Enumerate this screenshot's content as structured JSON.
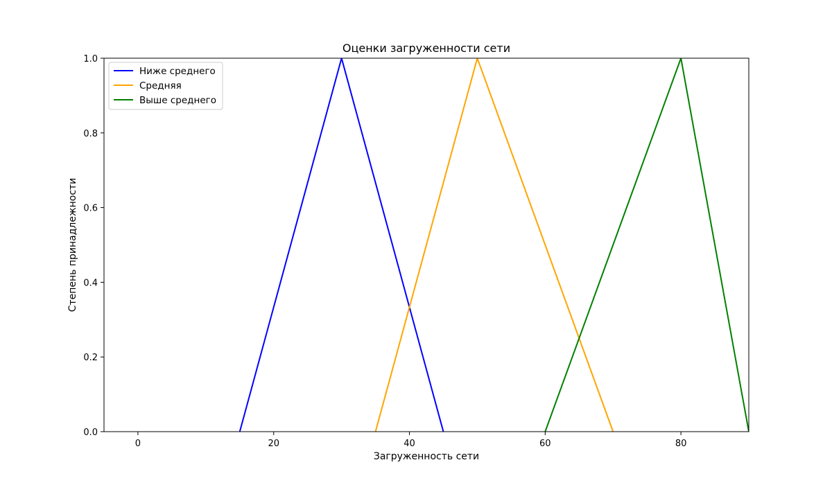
{
  "chart_data": {
    "type": "line",
    "title": "Оценки загруженности сети",
    "xlabel": "Загруженность сети",
    "ylabel": "Степень принадлежности",
    "xlim": [
      -5,
      90
    ],
    "ylim": [
      0,
      1
    ],
    "x_ticks": [
      0,
      20,
      40,
      60,
      80
    ],
    "y_ticks": [
      0.0,
      0.2,
      0.4,
      0.6,
      0.8,
      1.0
    ],
    "x_tick_labels": [
      "0",
      "20",
      "40",
      "60",
      "80"
    ],
    "y_tick_labels": [
      "0.0",
      "0.2",
      "0.4",
      "0.6",
      "0.8",
      "1.0"
    ],
    "grid": false,
    "legend_position": "top-left",
    "series": [
      {
        "name": "Ниже среднего",
        "color": "#0000ff",
        "x": [
          15,
          30,
          45
        ],
        "y": [
          0,
          1,
          0
        ]
      },
      {
        "name": "Средняя",
        "color": "#ffa500",
        "x": [
          35,
          50,
          70
        ],
        "y": [
          0,
          1,
          0
        ]
      },
      {
        "name": "Выше среднего",
        "color": "#008000",
        "x": [
          60,
          80,
          90
        ],
        "y": [
          0,
          1,
          0
        ]
      }
    ]
  }
}
